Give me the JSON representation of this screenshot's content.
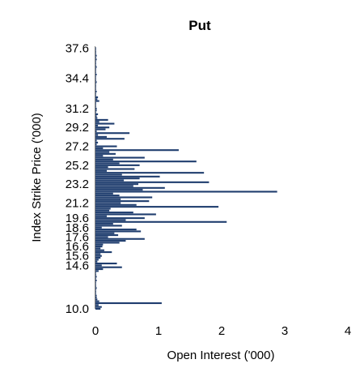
{
  "chart_data": {
    "type": "bar",
    "orientation": "horizontal",
    "title": "Put",
    "xlabel": "Open Interest ('000)",
    "ylabel": "Index Strike Price ('000)",
    "xlim": [
      0,
      4
    ],
    "ylim": [
      10.0,
      37.8
    ],
    "x_ticks": [
      "0",
      "1",
      "2",
      "3",
      "4"
    ],
    "y_ticks": [
      "10.0",
      "14.6",
      "15.6",
      "16.6",
      "17.6",
      "18.6",
      "19.6",
      "21.2",
      "23.2",
      "25.2",
      "27.2",
      "29.2",
      "31.2",
      "34.4",
      "37.6"
    ],
    "grid": false,
    "bar_color": "#1f3d6e",
    "series": [
      {
        "x": [
          10.0,
          10.2,
          10.4,
          10.6,
          10.8,
          11.0,
          11.2,
          11.4,
          11.6,
          11.8,
          12.0,
          12.2,
          12.4,
          12.6,
          12.8,
          13.0,
          13.2,
          13.4,
          13.6,
          13.8,
          14.0,
          14.2,
          14.4,
          14.6,
          14.8,
          15.0,
          15.2,
          15.4,
          15.6,
          15.8,
          16.0,
          16.2,
          16.4,
          16.6,
          16.8,
          17.0,
          17.2,
          17.4,
          17.6,
          17.8,
          18.0,
          18.2,
          18.4,
          18.6,
          18.8,
          19.0,
          19.2,
          19.4,
          19.6,
          19.8,
          20.0,
          20.2,
          20.4,
          20.6,
          20.8,
          21.0,
          21.2,
          21.4,
          21.6,
          21.8,
          22.0,
          22.2,
          22.4,
          22.6,
          22.8,
          23.0,
          23.2,
          23.4,
          23.6,
          23.8,
          24.0,
          24.2,
          24.4,
          24.6,
          24.8,
          25.0,
          25.2,
          25.4,
          25.6,
          25.8,
          26.0,
          26.2,
          26.4,
          26.6,
          26.8,
          27.0,
          27.2,
          27.4,
          27.6,
          27.8,
          28.0,
          28.2,
          28.4,
          28.6,
          28.8,
          29.0,
          29.2,
          29.4,
          29.6,
          29.8,
          30.0,
          30.2,
          30.4,
          30.6,
          30.8,
          31.0,
          31.2,
          31.4,
          31.6,
          31.8,
          32.0,
          32.2,
          32.4,
          32.6,
          32.8,
          33.0,
          33.2,
          33.4,
          33.6,
          33.8,
          34.0,
          34.2,
          34.4,
          34.6,
          34.8,
          35.0,
          35.2,
          35.4,
          35.6,
          35.8,
          36.0,
          36.2,
          36.4,
          36.6,
          36.8,
          37.0,
          37.2,
          37.4,
          37.6
        ],
        "values": [
          0.08,
          0.1,
          0.05,
          1.05,
          0.06,
          0.03,
          0.02,
          0.02,
          0.01,
          0.01,
          0.01,
          0.02,
          0.01,
          0.01,
          0.01,
          0.02,
          0.01,
          0.02,
          0.01,
          0.01,
          0.05,
          0.12,
          0.42,
          0.1,
          0.34,
          0.03,
          0.05,
          0.08,
          0.1,
          0.08,
          0.26,
          0.14,
          0.08,
          0.11,
          0.12,
          0.38,
          0.48,
          0.78,
          0.2,
          0.36,
          0.3,
          0.72,
          0.65,
          0.1,
          0.42,
          0.28,
          2.08,
          0.48,
          0.78,
          0.18,
          0.96,
          0.6,
          0.22,
          0.24,
          1.95,
          0.65,
          0.4,
          0.85,
          0.4,
          0.9,
          0.38,
          0.28,
          2.88,
          0.75,
          1.1,
          0.6,
          0.68,
          1.8,
          0.45,
          0.7,
          1.02,
          0.42,
          1.72,
          0.18,
          0.62,
          0.2,
          0.7,
          0.38,
          1.6,
          0.28,
          0.78,
          0.12,
          0.32,
          0.22,
          1.32,
          0.12,
          0.34,
          0.02,
          0.04,
          0.02,
          0.46,
          0.18,
          0.04,
          0.54,
          0.02,
          0.16,
          0.22,
          0.04,
          0.3,
          0.06,
          0.2,
          0.03,
          0.02,
          0.04,
          0.01,
          0.02,
          0.02,
          0.01,
          0.01,
          0.01,
          0.06,
          0.03,
          0.04,
          0.01,
          0.01,
          0.02,
          0.01,
          0.01,
          0.01,
          0.01,
          0.02,
          0.01,
          0.01,
          0.01,
          0.02,
          0.01,
          0.01,
          0.01,
          0.02,
          0.01,
          0.01,
          0.01,
          0.02,
          0.01,
          0.02,
          0.01,
          0.01,
          0.01,
          0.01
        ]
      }
    ]
  }
}
